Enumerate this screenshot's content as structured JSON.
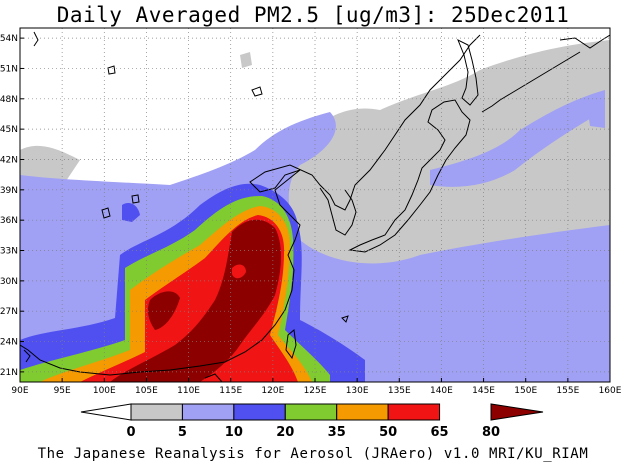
{
  "title": "Daily Averaged PM2.5 [ug/m3]: 25Dec2011",
  "footer": "The Japanese Reanalysis for Aerosol (JRAero) v1.0 MRI/KU_RIAM",
  "map": {
    "lon_range": [
      90,
      160
    ],
    "lat_range": [
      20,
      55
    ],
    "lon_ticks": [
      "90E",
      "95E",
      "100E",
      "105E",
      "110E",
      "115E",
      "120E",
      "125E",
      "130E",
      "135E",
      "140E",
      "145E",
      "150E",
      "155E",
      "160E"
    ],
    "lat_ticks": [
      "21N",
      "24N",
      "27N",
      "30N",
      "33N",
      "36N",
      "39N",
      "42N",
      "45N",
      "48N",
      "51N",
      "54N"
    ],
    "grid": true
  },
  "colorbar": {
    "labels": [
      "0",
      "5",
      "10",
      "20",
      "35",
      "50",
      "65",
      "80"
    ],
    "colors": [
      "#ffffff",
      "#c8c8c8",
      "#a0a0f5",
      "#5050f0",
      "#80cc30",
      "#f59a00",
      "#f01414",
      "#8c0000"
    ]
  }
}
